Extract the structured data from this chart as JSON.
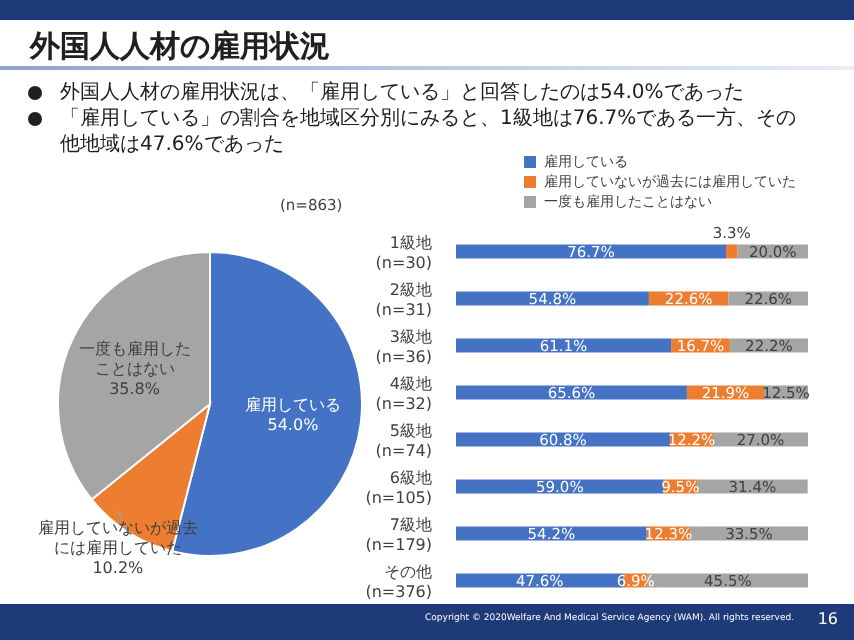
{
  "chart_data": [
    {
      "type": "pie",
      "title": "外国人人材の雇用状況",
      "annotations": [
        "外国人人材の雇用状況は、「雇用している」と回答したのは54.0%であった",
        "「雇用している」の割合を地域区分別にみると、1級地は76.7%である一方、その他地域は47.6%であった",
        "(n=863)"
      ],
      "categories": [
        "雇用している",
        "雇用していないが過去には雇用していた",
        "一度も雇用したことはない"
      ],
      "values": [
        54.0,
        10.2,
        35.8
      ],
      "value_labels": [
        "54.0%",
        "10.2%",
        "35.8%"
      ],
      "colors": [
        "#4472c4",
        "#ed7d31",
        "#a5a5a5"
      ],
      "legend": false
    },
    {
      "type": "bar",
      "orientation": "horizontal",
      "stacked": true,
      "legend": "top",
      "data_labels": true,
      "annotations": [
        "Copyright © 2020Welfare And Medical Service Agency (WAM). All rights reserved.",
        "16"
      ],
      "categories": [
        "1級地(n=30)",
        "2級地(n=31)",
        "3級地(n=36)",
        "4級地(n=32)",
        "5級地(n=74)",
        "6級地(n=105)",
        "7級地(n=179)",
        "その他(n=376)"
      ],
      "series": [
        {
          "name": "雇用している",
          "color": "#4472c4",
          "values": [
            76.7,
            54.8,
            61.1,
            65.6,
            60.8,
            59.0,
            54.2,
            47.6
          ],
          "value_labels": [
            "76.7%",
            "54.8%",
            "61.1%",
            "65.6%",
            "60.8%",
            "59.0%",
            "54.2%",
            "47.6%"
          ]
        },
        {
          "name": "雇用していないが過去には雇用していた",
          "color": "#ed7d31",
          "values": [
            3.3,
            22.6,
            16.7,
            21.9,
            12.2,
            9.5,
            12.3,
            6.9
          ],
          "value_labels": [
            "3.3%",
            "22.6%",
            "16.7%",
            "21.9%",
            "12.2%",
            "9.5%",
            "12.3%",
            "6.9%"
          ]
        },
        {
          "name": "一度も雇用したことはない",
          "color": "#a5a5a5",
          "values": [
            20.0,
            22.6,
            22.2,
            12.5,
            27.0,
            31.4,
            33.5,
            45.5
          ],
          "value_labels": [
            "20.0%",
            "22.6%",
            "22.2%",
            "12.5%",
            "27.0%",
            "31.4%",
            "33.5%",
            "45.5%"
          ]
        }
      ]
    }
  ]
}
